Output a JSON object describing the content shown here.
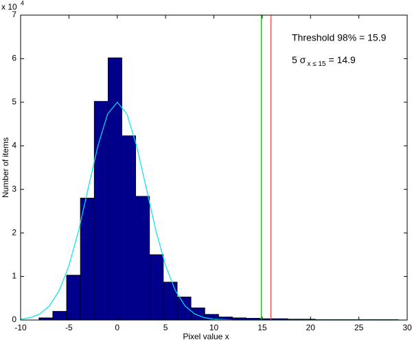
{
  "chart_data": {
    "type": "histogram",
    "xlabel": "Pixel value x",
    "ylabel": "Number of items",
    "y_multiplier": {
      "base": "x 10",
      "exponent": "4"
    },
    "xlim": [
      -10,
      30
    ],
    "xticks": [
      -10,
      -5,
      0,
      5,
      10,
      15,
      20,
      25,
      30
    ],
    "ylim": [
      0,
      7
    ],
    "yticks": [
      0,
      1,
      2,
      3,
      4,
      5,
      6,
      7
    ],
    "bins": [
      -8.1,
      -6.67,
      -5.24,
      -3.81,
      -2.38,
      -0.95,
      0.48,
      1.91,
      3.34,
      4.77,
      6.2,
      7.63,
      9.06,
      10.49,
      11.92,
      13.35,
      14.78,
      16.21,
      17.64,
      19.07,
      20.5,
      21.93,
      23.36,
      24.79,
      26.22,
      27.65,
      29.08
    ],
    "counts": [
      0.05,
      0.2,
      1.03,
      2.8,
      5.02,
      6.02,
      4.23,
      2.84,
      1.5,
      0.87,
      0.53,
      0.28,
      0.13,
      0.07,
      0.05,
      0.04,
      0.03,
      0.03,
      0.02,
      0.02,
      0.01,
      0.01,
      0.01,
      0.01,
      0.01,
      0.01
    ],
    "color": "#00008b",
    "fit": {
      "color": "#00e5ee",
      "x": [
        -10,
        -9,
        -8,
        -7,
        -6,
        -5,
        -4,
        -3,
        -2,
        -1,
        0,
        1,
        2,
        3,
        4,
        5,
        6,
        7,
        8,
        9,
        10,
        11,
        12,
        13,
        14,
        15,
        30
      ],
      "values": [
        0.02,
        0.055,
        0.14,
        0.33,
        0.68,
        1.25,
        2.05,
        3.03,
        4.0,
        4.73,
        5,
        4.73,
        4.0,
        3.03,
        2.05,
        1.25,
        0.68,
        0.33,
        0.14,
        0.055,
        0.02,
        0.01,
        0,
        0,
        0,
        0,
        0
      ]
    },
    "vlines": [
      {
        "x": 14.9,
        "color": "#00cc00"
      },
      {
        "x": 15.9,
        "color": "#ff4040"
      }
    ],
    "annotations": [
      {
        "text": "Threshold 98% = 15.9",
        "color": "#ff2020"
      },
      {
        "text": "5 σ",
        "sub": "x ≤ 15",
        "after": "= 14.9",
        "color": "#00dd00"
      }
    ]
  }
}
